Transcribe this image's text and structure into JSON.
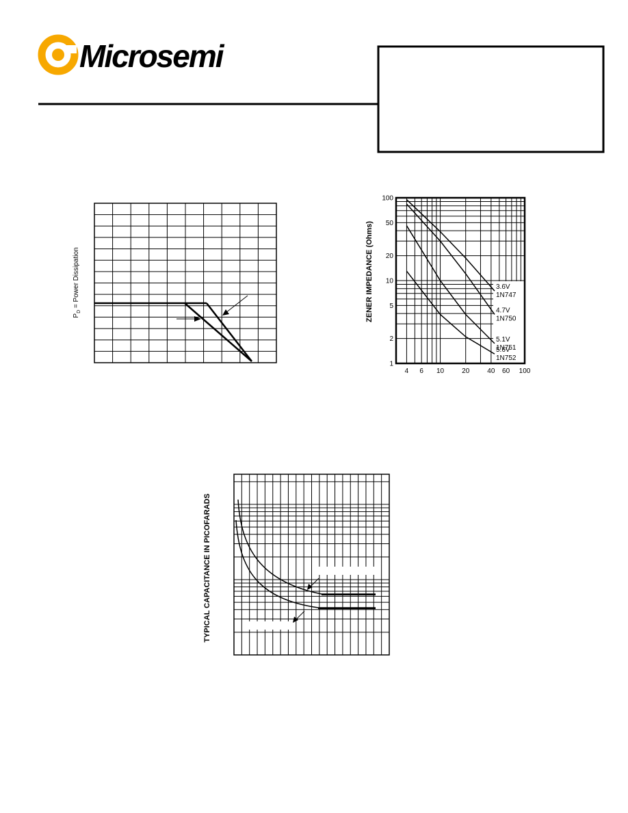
{
  "logo": "Microsemi",
  "figure1": {
    "y_label_symbol": "P",
    "y_label_subscript": "D",
    "y_label_text": " = Power Dissipation"
  },
  "chart_data": {
    "type": "line",
    "y_label": "ZENER IMPEDANCE (Ohms)",
    "x": [
      4,
      10,
      20,
      44
    ],
    "series": [
      {
        "name": "3.6V",
        "device": "1N747",
        "color": "#000000",
        "values": [
          95,
          39,
          18.7,
          7.5
        ]
      },
      {
        "name": "4.7V",
        "device": "1N750",
        "color": "#000000",
        "values": [
          84,
          30,
          12.1,
          3.9
        ]
      },
      {
        "name": "5.1V",
        "device": "1N751",
        "color": "#000000",
        "values": [
          46,
          10,
          3.9,
          1.74
        ]
      },
      {
        "name": "5.6V",
        "device": "1N752",
        "color": "#000000",
        "values": [
          13,
          3.9,
          2.1,
          1.3
        ]
      }
    ],
    "xlim": [
      3,
      100
    ],
    "ylim": [
      1,
      100
    ],
    "log_x": true,
    "log_y": true,
    "grid": true,
    "xticks": [
      4,
      6,
      10,
      20,
      40,
      60,
      100
    ],
    "yticks": [
      1,
      2,
      5,
      10,
      20,
      50,
      100
    ],
    "x_minor_grid": [
      3,
      5,
      7,
      8,
      9,
      30,
      50,
      70,
      80,
      90
    ],
    "y_minor_grid": [
      3,
      4,
      6,
      7,
      8,
      9,
      30,
      40,
      60,
      70,
      80,
      90
    ]
  },
  "figure3": {
    "y_label": "TYPICAL CAPACITANCE IN PICOFARADS"
  }
}
